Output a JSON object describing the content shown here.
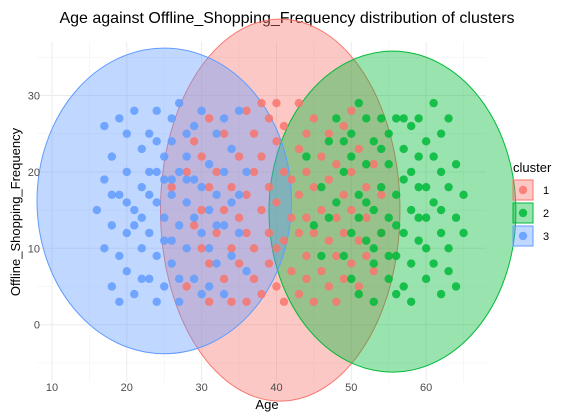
{
  "chart_data": {
    "type": "scatter",
    "title": "Age against Offline_Shopping_Frequency distribution of clusters",
    "xlabel": "Age",
    "ylabel": "Offline_Shopping_Frequency",
    "xlim": [
      8,
      68
    ],
    "ylim": [
      -7.5,
      37
    ],
    "x_ticks": [
      10,
      20,
      30,
      40,
      50,
      60
    ],
    "y_ticks": [
      0,
      10,
      20,
      30
    ],
    "grid": true,
    "legend": {
      "title": "cluster",
      "position": "right",
      "entries": [
        "1",
        "2",
        "3"
      ]
    },
    "colors": {
      "1": "#F8766D",
      "2": "#00BA38",
      "3": "#619CFF"
    },
    "series": [
      {
        "name": "1",
        "points": [
          [
            26,
            18
          ],
          [
            28,
            5
          ],
          [
            28,
            20
          ],
          [
            29,
            13
          ],
          [
            29,
            24
          ],
          [
            30,
            10
          ],
          [
            30,
            15
          ],
          [
            30,
            22
          ],
          [
            31,
            3
          ],
          [
            31,
            8
          ],
          [
            31,
            18
          ],
          [
            31,
            27
          ],
          [
            32,
            12
          ],
          [
            32,
            20
          ],
          [
            33,
            6
          ],
          [
            33,
            15
          ],
          [
            33,
            25
          ],
          [
            34,
            3
          ],
          [
            34,
            10
          ],
          [
            34,
            18
          ],
          [
            35,
            8
          ],
          [
            35,
            14
          ],
          [
            35,
            22
          ],
          [
            36,
            3
          ],
          [
            36,
            12
          ],
          [
            36,
            17
          ],
          [
            36,
            28
          ],
          [
            37,
            6
          ],
          [
            37,
            10
          ],
          [
            37,
            20
          ],
          [
            37,
            25
          ],
          [
            38,
            4
          ],
          [
            38,
            15
          ],
          [
            38,
            22
          ],
          [
            38,
            29
          ],
          [
            39,
            8
          ],
          [
            39,
            12
          ],
          [
            39,
            18
          ],
          [
            39,
            27
          ],
          [
            40,
            5
          ],
          [
            40,
            10
          ],
          [
            40,
            16
          ],
          [
            40,
            24
          ],
          [
            40,
            29
          ],
          [
            41,
            3
          ],
          [
            41,
            11
          ],
          [
            41,
            20
          ],
          [
            41,
            26
          ],
          [
            42,
            7
          ],
          [
            42,
            14
          ],
          [
            42,
            19
          ],
          [
            43,
            4
          ],
          [
            43,
            12
          ],
          [
            43,
            17
          ],
          [
            43,
            23
          ],
          [
            43,
            29
          ],
          [
            44,
            6
          ],
          [
            44,
            9
          ],
          [
            44,
            14
          ],
          [
            44,
            20
          ],
          [
            44,
            25
          ],
          [
            45,
            3
          ],
          [
            45,
            12
          ],
          [
            45,
            18
          ],
          [
            45,
            27
          ],
          [
            46,
            7
          ],
          [
            46,
            15
          ],
          [
            46,
            22
          ],
          [
            47,
            5
          ],
          [
            47,
            11
          ],
          [
            47,
            19
          ],
          [
            47,
            25
          ],
          [
            48,
            3
          ],
          [
            48,
            9
          ],
          [
            48,
            14
          ],
          [
            48,
            21
          ],
          [
            49,
            6
          ],
          [
            49,
            12
          ],
          [
            49,
            17
          ],
          [
            49,
            26
          ],
          [
            50,
            8
          ],
          [
            50,
            15
          ],
          [
            50,
            20
          ],
          [
            50,
            28
          ],
          [
            51,
            5
          ],
          [
            51,
            11
          ],
          [
            51,
            23
          ],
          [
            52,
            9
          ],
          [
            52,
            14
          ],
          [
            52,
            18
          ],
          [
            53,
            7
          ],
          [
            53,
            21
          ],
          [
            54,
            12
          ],
          [
            54,
            17
          ]
        ]
      },
      {
        "name": "2",
        "points": [
          [
            44,
            22
          ],
          [
            45,
            13
          ],
          [
            46,
            9
          ],
          [
            46,
            18
          ],
          [
            47,
            24
          ],
          [
            47,
            14
          ],
          [
            48,
            27
          ],
          [
            48,
            16
          ],
          [
            49,
            9
          ],
          [
            49,
            20
          ],
          [
            50,
            12
          ],
          [
            50,
            25
          ],
          [
            50,
            6
          ],
          [
            51,
            29
          ],
          [
            51,
            17
          ],
          [
            51,
            4
          ],
          [
            52,
            21
          ],
          [
            52,
            11
          ],
          [
            52,
            27
          ],
          [
            53,
            8
          ],
          [
            53,
            15
          ],
          [
            53,
            24
          ],
          [
            53,
            3
          ],
          [
            54,
            18
          ],
          [
            54,
            27
          ],
          [
            54,
            12
          ],
          [
            55,
            6
          ],
          [
            55,
            21
          ],
          [
            55,
            14
          ],
          [
            56,
            27
          ],
          [
            56,
            9
          ],
          [
            56,
            17
          ],
          [
            56,
            4
          ],
          [
            57,
            23
          ],
          [
            57,
            12
          ],
          [
            57,
            19
          ],
          [
            58,
            8
          ],
          [
            58,
            15
          ],
          [
            58,
            26
          ],
          [
            58,
            3
          ],
          [
            59,
            11
          ],
          [
            59,
            18
          ],
          [
            59,
            22
          ],
          [
            60,
            6
          ],
          [
            60,
            14
          ],
          [
            60,
            24
          ],
          [
            60,
            10
          ],
          [
            61,
            29
          ],
          [
            61,
            16
          ],
          [
            61,
            8
          ],
          [
            62,
            20
          ],
          [
            62,
            12
          ],
          [
            62,
            25
          ],
          [
            62,
            4
          ],
          [
            63,
            18
          ],
          [
            63,
            10
          ],
          [
            63,
            27
          ],
          [
            64,
            14
          ],
          [
            64,
            21
          ],
          [
            64,
            5
          ],
          [
            65,
            12
          ],
          [
            65,
            17
          ],
          [
            49,
            24
          ],
          [
            50,
            22
          ],
          [
            51,
            14
          ],
          [
            52,
            16
          ],
          [
            53,
            10
          ],
          [
            54,
            23
          ],
          [
            55,
            25
          ],
          [
            56,
            13
          ],
          [
            57,
            5
          ],
          [
            58,
            20
          ],
          [
            59,
            27
          ],
          [
            60,
            18
          ],
          [
            61,
            22
          ],
          [
            62,
            15
          ],
          [
            63,
            7
          ],
          [
            55,
            9
          ],
          [
            57,
            27
          ],
          [
            59,
            14
          ]
        ]
      },
      {
        "name": "3",
        "points": [
          [
            16,
            15
          ],
          [
            17,
            10
          ],
          [
            17,
            19
          ],
          [
            17,
            26
          ],
          [
            18,
            5
          ],
          [
            18,
            13
          ],
          [
            18,
            22
          ],
          [
            19,
            9
          ],
          [
            19,
            17
          ],
          [
            19,
            27
          ],
          [
            19,
            3
          ],
          [
            20,
            12
          ],
          [
            20,
            20
          ],
          [
            20,
            25
          ],
          [
            20,
            7
          ],
          [
            21,
            15
          ],
          [
            21,
            28
          ],
          [
            21,
            4
          ],
          [
            22,
            10
          ],
          [
            22,
            18
          ],
          [
            22,
            23
          ],
          [
            22,
            14
          ],
          [
            23,
            6
          ],
          [
            23,
            12
          ],
          [
            23,
            25
          ],
          [
            23,
            17
          ],
          [
            24,
            3
          ],
          [
            24,
            9
          ],
          [
            24,
            20
          ],
          [
            24,
            28
          ],
          [
            25,
            14
          ],
          [
            25,
            22
          ],
          [
            25,
            5
          ],
          [
            25,
            11
          ],
          [
            26,
            17
          ],
          [
            26,
            27
          ],
          [
            26,
            8
          ],
          [
            26,
            24
          ],
          [
            27,
            13
          ],
          [
            27,
            20
          ],
          [
            27,
            29
          ],
          [
            27,
            3
          ],
          [
            28,
            10
          ],
          [
            28,
            16
          ],
          [
            28,
            22
          ],
          [
            29,
            6
          ],
          [
            29,
            19
          ],
          [
            29,
            26
          ],
          [
            30,
            12
          ],
          [
            30,
            28
          ],
          [
            30,
            4
          ],
          [
            31,
            15
          ],
          [
            31,
            21
          ],
          [
            31,
            10
          ],
          [
            32,
            8
          ],
          [
            32,
            17
          ],
          [
            32,
            25
          ],
          [
            33,
            13
          ],
          [
            33,
            20
          ],
          [
            33,
            27
          ],
          [
            34,
            9
          ],
          [
            34,
            23
          ],
          [
            35,
            12
          ],
          [
            35,
            17
          ],
          [
            35,
            28
          ],
          [
            36,
            7
          ],
          [
            36,
            20
          ],
          [
            18,
            17
          ],
          [
            20,
            16
          ],
          [
            21,
            13
          ],
          [
            22,
            6
          ],
          [
            23,
            20
          ],
          [
            24,
            16
          ],
          [
            25,
            19
          ],
          [
            26,
            11
          ],
          [
            27,
            6
          ],
          [
            28,
            25
          ],
          [
            29,
            14
          ],
          [
            30,
            18
          ],
          [
            31,
            5
          ],
          [
            32,
            13
          ],
          [
            33,
            4
          ],
          [
            34,
            16
          ],
          [
            24,
            24
          ],
          [
            26,
            19
          ],
          [
            28,
            19
          ]
        ]
      }
    ],
    "ellipses": [
      {
        "cluster": "1",
        "center": [
          40.5,
          15
        ],
        "rx": 16,
        "ry": 25
      },
      {
        "cluster": "2",
        "center": [
          55.5,
          14.8
        ],
        "rx": 16.5,
        "ry": 21
      },
      {
        "cluster": "3",
        "center": [
          25,
          16.2
        ],
        "rx": 17,
        "ry": 20
      }
    ]
  }
}
